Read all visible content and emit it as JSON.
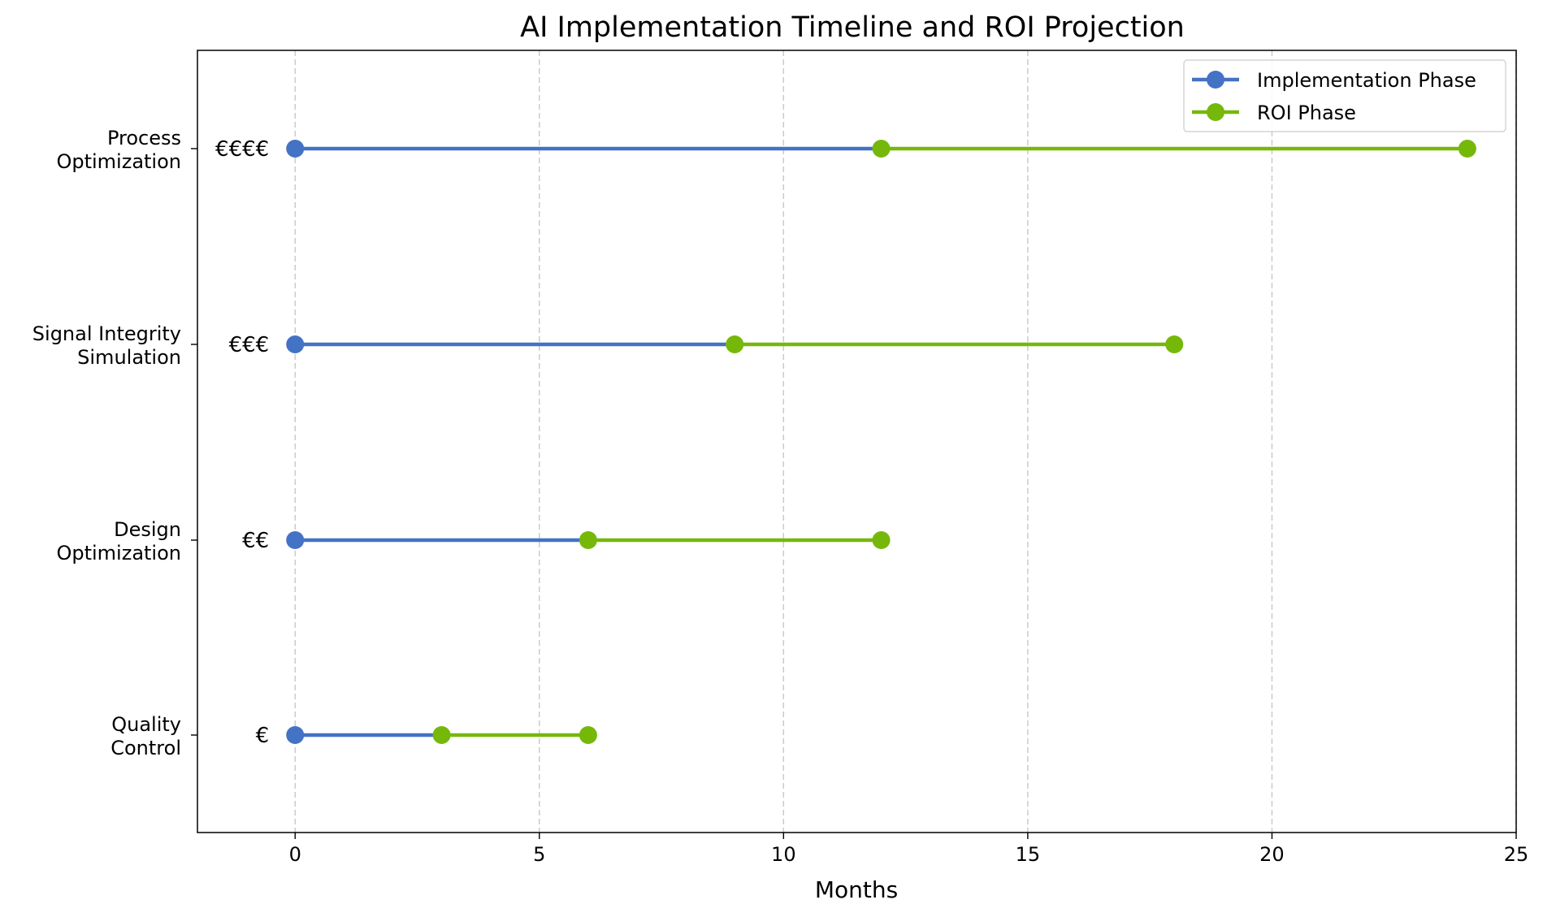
{
  "chart_data": {
    "type": "line",
    "title": "AI Implementation Timeline and ROI Projection",
    "xlabel": "Months",
    "ylabel": "",
    "xlim": [
      -2,
      25
    ],
    "xticks": [
      "0",
      "5",
      "10",
      "15",
      "20",
      "25"
    ],
    "xtick_values": [
      0,
      5,
      10,
      15,
      20,
      25
    ],
    "grid": "x, dashed",
    "legend_position": "top-right",
    "categories": [
      {
        "label": "Quality\nControl",
        "lines": [
          "Quality",
          "Control"
        ],
        "cost": "€",
        "implementation": [
          0,
          3
        ],
        "roi": [
          3,
          6
        ]
      },
      {
        "label": "Design\nOptimization",
        "lines": [
          "Design",
          "Optimization"
        ],
        "cost": "€€",
        "implementation": [
          0,
          6
        ],
        "roi": [
          6,
          12
        ]
      },
      {
        "label": "Signal Integrity\nSimulation",
        "lines": [
          "Signal Integrity",
          "Simulation"
        ],
        "cost": "€€€",
        "implementation": [
          0,
          9
        ],
        "roi": [
          9,
          18
        ]
      },
      {
        "label": "Process\nOptimization",
        "lines": [
          "Process",
          "Optimization"
        ],
        "cost": "€€€€",
        "implementation": [
          0,
          12
        ],
        "roi": [
          12,
          24
        ]
      }
    ],
    "series": [
      {
        "name": "Implementation Phase",
        "color": "#4472C4"
      },
      {
        "name": "ROI Phase",
        "color": "#76B80A"
      }
    ]
  }
}
